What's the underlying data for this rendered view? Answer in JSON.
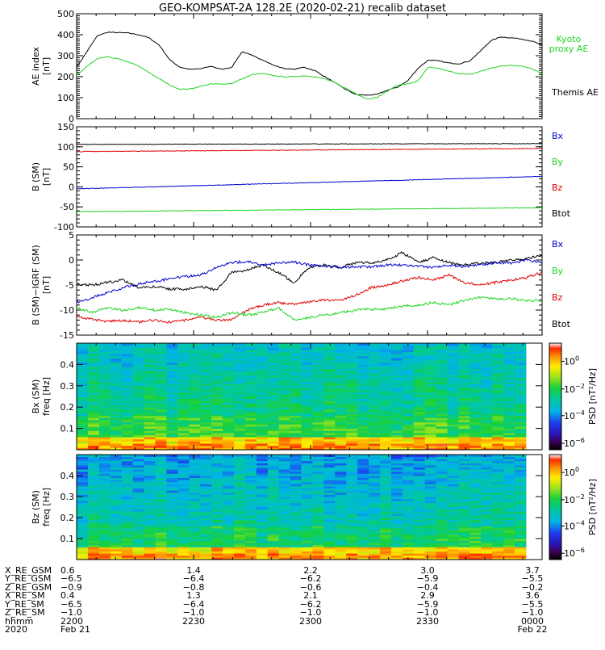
{
  "title": "GEO-KOMPSAT-2A 128.2E (2020-02-21) recalib dataset",
  "chart_data": [
    {
      "type": "line",
      "panel": "ae_index",
      "ylabel_line1": "AE index",
      "ylabel_line2": "[nT]",
      "ylim": [
        0,
        500
      ],
      "yticks": [
        0,
        100,
        200,
        300,
        400,
        500
      ],
      "yminor": 10,
      "xlim": [
        0,
        90
      ],
      "x": [
        0,
        2,
        4,
        6,
        8,
        10,
        12,
        14,
        16,
        18,
        20,
        22,
        24,
        26,
        28,
        30,
        32,
        34,
        36,
        38,
        40,
        42,
        44,
        46,
        48,
        50,
        52,
        54,
        56,
        58,
        60,
        62,
        64,
        66,
        68,
        70,
        72,
        74,
        76,
        78,
        80,
        82,
        84,
        86,
        88,
        90
      ],
      "series": [
        {
          "name": "Themis AE",
          "label_lines": [
            "Themis AE"
          ],
          "color": "#000000",
          "values": [
            245,
            320,
            395,
            412,
            410,
            408,
            400,
            385,
            350,
            280,
            245,
            235,
            238,
            250,
            235,
            245,
            320,
            300,
            280,
            255,
            240,
            235,
            245,
            230,
            200,
            170,
            140,
            115,
            112,
            115,
            135,
            150,
            180,
            240,
            280,
            275,
            265,
            262,
            275,
            320,
            370,
            390,
            385,
            380,
            370,
            350
          ]
        },
        {
          "name": "Kyoto proxy AE",
          "label_lines": [
            "Kyoto",
            "proxy AE"
          ],
          "color": "#1fd41f",
          "values": [
            205,
            250,
            285,
            295,
            285,
            270,
            250,
            220,
            190,
            160,
            140,
            142,
            155,
            165,
            165,
            168,
            190,
            210,
            215,
            205,
            200,
            200,
            205,
            200,
            190,
            170,
            145,
            120,
            95,
            100,
            130,
            160,
            165,
            180,
            245,
            240,
            225,
            215,
            210,
            225,
            240,
            250,
            255,
            250,
            240,
            215
          ]
        }
      ]
    },
    {
      "type": "line",
      "panel": "b_sm",
      "ylabel_line1": "B (SM)",
      "ylabel_line2": "[nT]",
      "ylim": [
        -100,
        150
      ],
      "yticks": [
        -100,
        -50,
        0,
        50,
        100,
        150
      ],
      "yminor": 10,
      "xlim": [
        0,
        90
      ],
      "x": [
        0,
        90
      ],
      "series": [
        {
          "name": "Btot",
          "color": "#000000",
          "values": [
            106,
            108
          ]
        },
        {
          "name": "Bz",
          "color": "#e00000",
          "values": [
            88,
            96
          ]
        },
        {
          "name": "Bx",
          "color": "#0000cc",
          "values": [
            -5,
            26
          ]
        },
        {
          "name": "By",
          "color": "#1fd41f",
          "values": [
            -62,
            -52
          ]
        }
      ],
      "legend": [
        {
          "label": "Bx",
          "color": "#0000cc"
        },
        {
          "label": "By",
          "color": "#1fd41f"
        },
        {
          "label": "Bz",
          "color": "#e00000"
        },
        {
          "label": "Btot",
          "color": "#000000"
        }
      ]
    },
    {
      "type": "line",
      "panel": "b_igrf",
      "ylabel_line1": "B (SM)−IGRF (SM)",
      "ylabel_line2": "[nT]",
      "ylim": [
        -15,
        5
      ],
      "yticks": [
        -15,
        -10,
        -5,
        0,
        5
      ],
      "yminor": 1,
      "xlim": [
        0,
        90
      ],
      "x": [
        0,
        3,
        6,
        9,
        12,
        15,
        18,
        21,
        24,
        27,
        30,
        33,
        36,
        39,
        42,
        45,
        48,
        51,
        54,
        57,
        60,
        63,
        66,
        69,
        72,
        75,
        78,
        81,
        84,
        87,
        90
      ],
      "series": [
        {
          "name": "Btot",
          "color": "#000000",
          "values": [
            -4.8,
            -5.0,
            -4.5,
            -4.0,
            -5.5,
            -5.3,
            -5.8,
            -5.8,
            -5.3,
            -6.0,
            -2.5,
            -2.0,
            -1.0,
            -2.5,
            -4.5,
            -1.5,
            -1.0,
            -1.5,
            -0.5,
            -0.6,
            0.0,
            1.5,
            -0.5,
            0.5,
            -0.5,
            -1.0,
            -0.6,
            -0.5,
            0.0,
            0.2,
            1.0
          ]
        },
        {
          "name": "Bx",
          "color": "#0000cc",
          "values": [
            -8.5,
            -7.5,
            -6.5,
            -5.5,
            -4.8,
            -4.3,
            -3.8,
            -3.3,
            -3.0,
            -1.5,
            -0.5,
            -0.3,
            -1.0,
            -0.6,
            -0.4,
            -1.0,
            -1.2,
            -1.5,
            -1.3,
            -1.4,
            -1.0,
            -1.0,
            -1.2,
            -1.5,
            -1.0,
            -1.3,
            -1.0,
            -0.5,
            -0.6,
            0.0,
            -0.5
          ]
        },
        {
          "name": "Bz",
          "color": "#e00000",
          "values": [
            -11.3,
            -11.8,
            -12.3,
            -12.0,
            -12.4,
            -12.0,
            -12.5,
            -12.0,
            -11.5,
            -12.0,
            -12.0,
            -10.0,
            -9.0,
            -8.5,
            -8.8,
            -8.3,
            -8.0,
            -8.0,
            -7.0,
            -5.5,
            -5.0,
            -4.2,
            -3.5,
            -4.0,
            -3.0,
            -4.5,
            -5.0,
            -4.5,
            -4.0,
            -3.5,
            -2.5
          ]
        },
        {
          "name": "By",
          "color": "#1fd41f",
          "values": [
            -9.5,
            -10.5,
            -9.5,
            -10.0,
            -9.5,
            -10.0,
            -9.8,
            -10.5,
            -11.0,
            -11.5,
            -10.5,
            -11.0,
            -10.5,
            -9.5,
            -12.0,
            -11.5,
            -11.0,
            -10.5,
            -10.0,
            -9.8,
            -9.8,
            -9.2,
            -9.0,
            -8.5,
            -9.0,
            -8.0,
            -7.5,
            -7.8,
            -7.7,
            -8.2,
            -8.0
          ]
        }
      ],
      "legend": [
        {
          "label": "Bx",
          "color": "#0000cc"
        },
        {
          "label": "By",
          "color": "#1fd41f"
        },
        {
          "label": "Bz",
          "color": "#e00000"
        },
        {
          "label": "Btot",
          "color": "#000000"
        }
      ]
    },
    {
      "type": "heatmap",
      "panel": "bx_psd",
      "ylabel_line1": "Bx (SM)",
      "ylabel_line2": "freq [Hz]",
      "ylim": [
        0,
        0.5
      ],
      "yticks": [
        0.1,
        0.2,
        0.3,
        0.4
      ],
      "ytick_labels": [
        "0.1",
        "0.2",
        "0.3",
        "0.4"
      ],
      "columns": 40,
      "rows": 50,
      "colorbar_label": "PSD [nT²/Hz]",
      "colorbar_ticks": [
        {
          "exp": "0",
          "frac": 0.83
        },
        {
          "exp": "−2",
          "frac": 0.57
        },
        {
          "exp": "−4",
          "frac": 0.32
        },
        {
          "exp": "−6",
          "frac": 0.06
        }
      ]
    },
    {
      "type": "heatmap",
      "panel": "bz_psd",
      "ylabel_line1": "Bz (SM)",
      "ylabel_line2": "freq [Hz]",
      "ylim": [
        0,
        0.5
      ],
      "yticks": [
        0.1,
        0.2,
        0.3,
        0.4
      ],
      "ytick_labels": [
        "0.1",
        "0.2",
        "0.3",
        "0.4"
      ],
      "columns": 40,
      "rows": 50,
      "colorbar_label": "PSD [nT²/Hz]",
      "colorbar_ticks": [
        {
          "exp": "0",
          "frac": 0.83
        },
        {
          "exp": "−2",
          "frac": 0.57
        },
        {
          "exp": "−4",
          "frac": 0.32
        },
        {
          "exp": "−6",
          "frac": 0.06
        }
      ]
    }
  ],
  "orbit_table": {
    "row_labels": [
      "X_RE_GSM",
      "Y_RE_GSM",
      "Z_RE_GSM",
      "X_RE_SM",
      "Y_RE_SM",
      "Z_RE_SM",
      "hhmm",
      "2020"
    ],
    "columns": [
      {
        "values": [
          "0.6",
          "−6.5",
          "−0.9",
          "0.4",
          "−6.5",
          "−1.0",
          "2200",
          "Feb 21"
        ]
      },
      {
        "values": [
          "1.4",
          "−6.4",
          "−0.8",
          "1.3",
          "−6.4",
          "−1.0",
          "2230",
          ""
        ]
      },
      {
        "values": [
          "2.2",
          "−6.2",
          "−0.6",
          "2.1",
          "−6.2",
          "−1.0",
          "2300",
          ""
        ]
      },
      {
        "values": [
          "3.0",
          "−5.9",
          "−0.4",
          "2.9",
          "−5.9",
          "−1.0",
          "2330",
          ""
        ]
      },
      {
        "values": [
          "3.7",
          "−5.5",
          "−0.2",
          "3.6",
          "−5.5",
          "−1.0",
          "0000",
          "Feb 22"
        ]
      }
    ]
  }
}
